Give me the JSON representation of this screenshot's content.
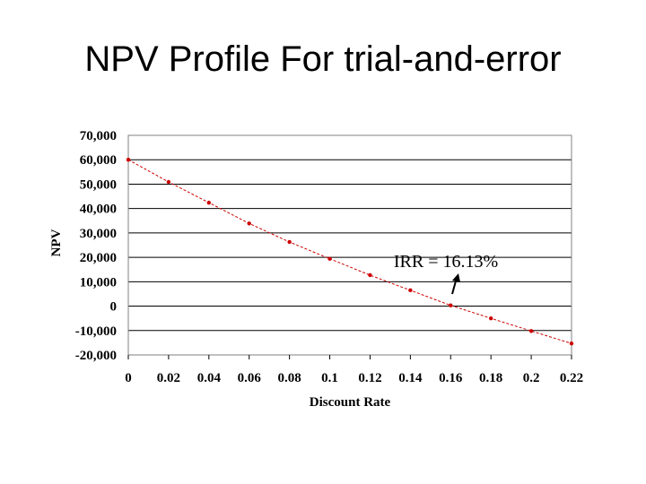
{
  "slide": {
    "title": "NPV Profile For trial-and-error"
  },
  "chart_data": {
    "type": "line",
    "xlabel": "Discount Rate",
    "ylabel": "NPV",
    "xlim": [
      0,
      0.22
    ],
    "ylim": [
      -20000,
      70000
    ],
    "x_ticks": [
      "0",
      "0.02",
      "0.04",
      "0.06",
      "0.08",
      "0.1",
      "0.12",
      "0.14",
      "0.16",
      "0.18",
      "0.2",
      "0.22"
    ],
    "y_ticks": [
      "70,000",
      "60,000",
      "50,000",
      "40,000",
      "30,000",
      "20,000",
      "10,000",
      "0",
      "-10,000",
      "-20,000"
    ],
    "grid": "horizontal",
    "series": [
      {
        "color": "#cc0000",
        "points": [
          [
            0,
            60000
          ],
          [
            0.02,
            50900
          ],
          [
            0.04,
            42400
          ],
          [
            0.06,
            33900
          ],
          [
            0.08,
            26300
          ],
          [
            0.1,
            19400
          ],
          [
            0.12,
            12700
          ],
          [
            0.14,
            6500
          ],
          [
            0.16,
            300
          ],
          [
            0.18,
            -5000
          ],
          [
            0.2,
            -10200
          ],
          [
            0.22,
            -15300
          ]
        ]
      }
    ],
    "annotations": [
      {
        "text": "IRR = 16.13%",
        "x": 0.1613,
        "y": 0
      }
    ]
  }
}
